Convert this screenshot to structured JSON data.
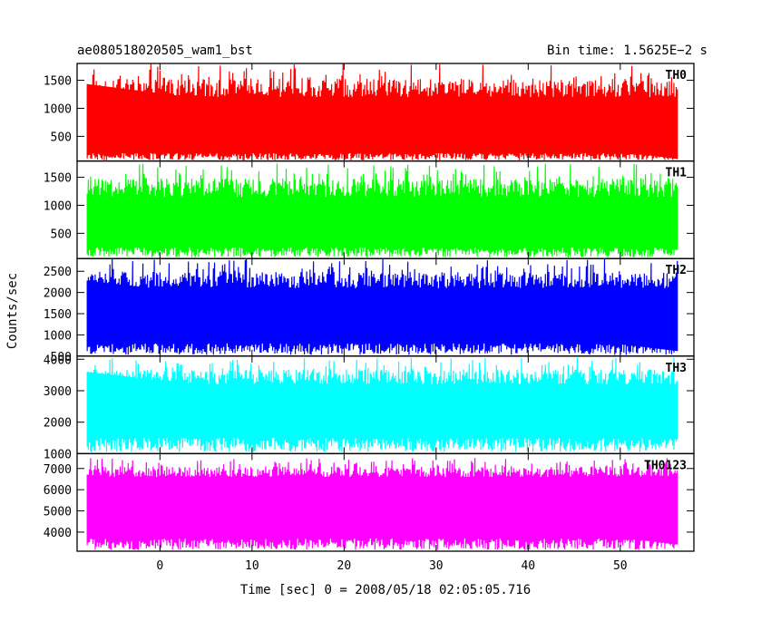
{
  "header": {
    "title": "ae080518020505_wam1_bst",
    "bin_time": "Bin time: 1.5625E−2 s"
  },
  "chart_data": {
    "type": "line",
    "xlabel": "Time [sec] 0 = 2008/05/18 02:05:05.716",
    "ylabel": "Counts/sec",
    "xlim": [
      -9,
      58
    ],
    "data_range": [
      -7.9,
      56.2
    ],
    "x_ticks": [
      0,
      10,
      20,
      30,
      40,
      50
    ],
    "x_tick_labels": [
      "0",
      "10",
      "20",
      "30",
      "40",
      "50"
    ],
    "panels": [
      {
        "name": "TH0",
        "color": "#ff0000",
        "ylim": [
          60,
          1800
        ],
        "ticks": [
          500,
          1000,
          1500
        ],
        "tick_labels": [
          "500",
          "1000",
          "1500"
        ],
        "base_low": 200,
        "base_high": 1200,
        "spike_max": 1790
      },
      {
        "name": "TH1",
        "color": "#00ff00",
        "ylim": [
          50,
          1790
        ],
        "ticks": [
          500,
          1000,
          1500
        ],
        "tick_labels": [
          "500",
          "1000",
          "1500"
        ],
        "base_low": 250,
        "base_high": 1150,
        "spike_max": 1750
      },
      {
        "name": "TH2",
        "color": "#0000ff",
        "ylim": [
          500,
          2800
        ],
        "ticks": [
          500,
          1000,
          1500,
          2000,
          2500
        ],
        "tick_labels": [
          "500",
          "1000",
          "1500",
          "2000",
          "2500"
        ],
        "base_low": 800,
        "base_high": 2100,
        "spike_max": 2800
      },
      {
        "name": "TH3",
        "color": "#00ffff",
        "ylim": [
          1000,
          4100
        ],
        "ticks": [
          1000,
          2000,
          3000,
          4000
        ],
        "tick_labels": [
          "1000",
          "2000",
          "3000",
          "4000"
        ],
        "base_low": 1500,
        "base_high": 3200,
        "spike_max": 4050
      },
      {
        "name": "TH0123",
        "color": "#ff00ff",
        "ylim": [
          3100,
          7700
        ],
        "ticks": [
          4000,
          5000,
          6000,
          7000
        ],
        "tick_labels": [
          "4000",
          "5000",
          "6000",
          "7000"
        ],
        "base_low": 3700,
        "base_high": 6600,
        "spike_max": 7500
      }
    ]
  }
}
